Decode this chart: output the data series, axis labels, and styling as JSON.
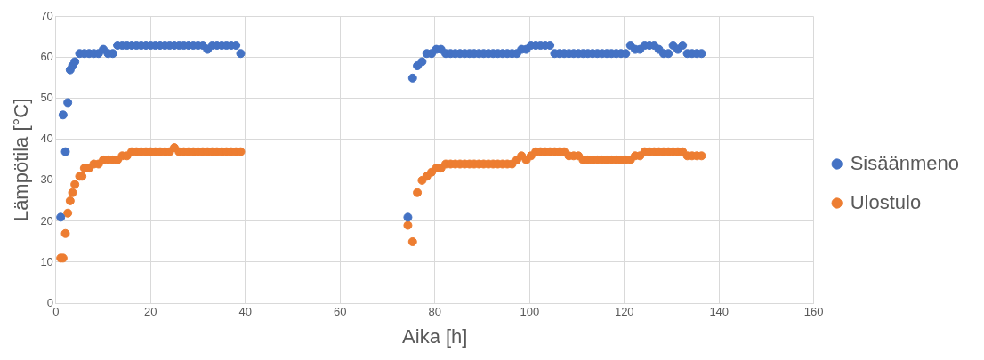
{
  "chart_data": {
    "type": "scatter",
    "xlabel": "Aika [h]",
    "ylabel": "Lämpötila [°C]",
    "xlim": [
      0,
      160
    ],
    "xticks": [
      0,
      20,
      40,
      60,
      80,
      100,
      120,
      140,
      160
    ],
    "ylim": [
      0,
      70
    ],
    "yticks": [
      0,
      10,
      20,
      30,
      40,
      50,
      60,
      70
    ],
    "grid": true,
    "legend": "right",
    "marker": "circle",
    "series": [
      {
        "name": "Sisäänmeno",
        "color": "#4472c4",
        "x": [
          1,
          1.5,
          2,
          2.5,
          3,
          3.5,
          4,
          5,
          6,
          7,
          8,
          9,
          10,
          11,
          12,
          13,
          14,
          15,
          16,
          17,
          18,
          19,
          20,
          21,
          22,
          23,
          24,
          25,
          26,
          27,
          28,
          29,
          30,
          31,
          32,
          33,
          34,
          35,
          36,
          37,
          38,
          39,
          74.3,
          75.3,
          76.3,
          77.3,
          78.3,
          79.3,
          80.3,
          81.3,
          82.3,
          83.3,
          84.3,
          85.3,
          86.3,
          87.3,
          88.3,
          89.3,
          90.3,
          91.3,
          92.3,
          93.3,
          94.3,
          95.3,
          96.3,
          97.3,
          98.3,
          99.3,
          100.3,
          101.3,
          102.3,
          103.3,
          104.3,
          105.3,
          106.3,
          107.3,
          108.3,
          109.3,
          110.3,
          111.3,
          112.3,
          113.3,
          114.3,
          115.3,
          116.3,
          117.3,
          118.3,
          119.3,
          120.3,
          121.3,
          122.3,
          123.3,
          124.3,
          125.3,
          126.3,
          127.3,
          128.3,
          129.3,
          130.3,
          131.3,
          132.3,
          133.3,
          134.3,
          135.3,
          136.3
        ],
        "values": [
          21,
          46,
          37,
          49,
          57,
          58,
          59,
          61,
          61,
          61,
          61,
          61,
          62,
          61,
          61,
          63,
          63,
          63,
          63,
          63,
          63,
          63,
          63,
          63,
          63,
          63,
          63,
          63,
          63,
          63,
          63,
          63,
          63,
          63,
          62,
          63,
          63,
          63,
          63,
          63,
          63,
          61,
          21,
          55,
          58,
          59,
          61,
          61,
          62,
          62,
          61,
          61,
          61,
          61,
          61,
          61,
          61,
          61,
          61,
          61,
          61,
          61,
          61,
          61,
          61,
          61,
          62,
          62,
          63,
          63,
          63,
          63,
          63,
          61,
          61,
          61,
          61,
          61,
          61,
          61,
          61,
          61,
          61,
          61,
          61,
          61,
          61,
          61,
          61,
          63,
          62,
          62,
          63,
          63,
          63,
          62,
          61,
          61,
          63,
          62,
          63,
          61,
          61,
          61,
          61
        ]
      },
      {
        "name": "Ulostulo",
        "color": "#ed7d31",
        "x": [
          1,
          1.5,
          2,
          2.5,
          3,
          3.5,
          4,
          5,
          5.5,
          6,
          7,
          8,
          9,
          10,
          11,
          12,
          13,
          14,
          15,
          16,
          17,
          18,
          19,
          20,
          21,
          22,
          23,
          24,
          25,
          26,
          27,
          28,
          29,
          30,
          31,
          32,
          33,
          34,
          35,
          36,
          37,
          38,
          39,
          74.3,
          75.3,
          76.3,
          77.3,
          78.3,
          79.3,
          80.3,
          81.3,
          82.3,
          83.3,
          84.3,
          85.3,
          86.3,
          87.3,
          88.3,
          89.3,
          90.3,
          91.3,
          92.3,
          93.3,
          94.3,
          95.3,
          96.3,
          97.3,
          98.3,
          99.3,
          100.3,
          101.3,
          102.3,
          103.3,
          104.3,
          105.3,
          106.3,
          107.3,
          108.3,
          109.3,
          110.3,
          111.3,
          112.3,
          113.3,
          114.3,
          115.3,
          116.3,
          117.3,
          118.3,
          119.3,
          120.3,
          121.3,
          122.3,
          123.3,
          124.3,
          125.3,
          126.3,
          127.3,
          128.3,
          129.3,
          130.3,
          131.3,
          132.3,
          133.3,
          134.3,
          135.3,
          136.3
        ],
        "values": [
          11,
          11,
          17,
          22,
          25,
          27,
          29,
          31,
          31,
          33,
          33,
          34,
          34,
          35,
          35,
          35,
          35,
          36,
          36,
          37,
          37,
          37,
          37,
          37,
          37,
          37,
          37,
          37,
          38,
          37,
          37,
          37,
          37,
          37,
          37,
          37,
          37,
          37,
          37,
          37,
          37,
          37,
          37,
          19,
          15,
          27,
          30,
          31,
          32,
          33,
          33,
          34,
          34,
          34,
          34,
          34,
          34,
          34,
          34,
          34,
          34,
          34,
          34,
          34,
          34,
          34,
          35,
          36,
          35,
          36,
          37,
          37,
          37,
          37,
          37,
          37,
          37,
          36,
          36,
          36,
          35,
          35,
          35,
          35,
          35,
          35,
          35,
          35,
          35,
          35,
          35,
          36,
          36,
          37,
          37,
          37,
          37,
          37,
          37,
          37,
          37,
          37,
          36,
          36,
          36,
          36
        ]
      }
    ]
  }
}
